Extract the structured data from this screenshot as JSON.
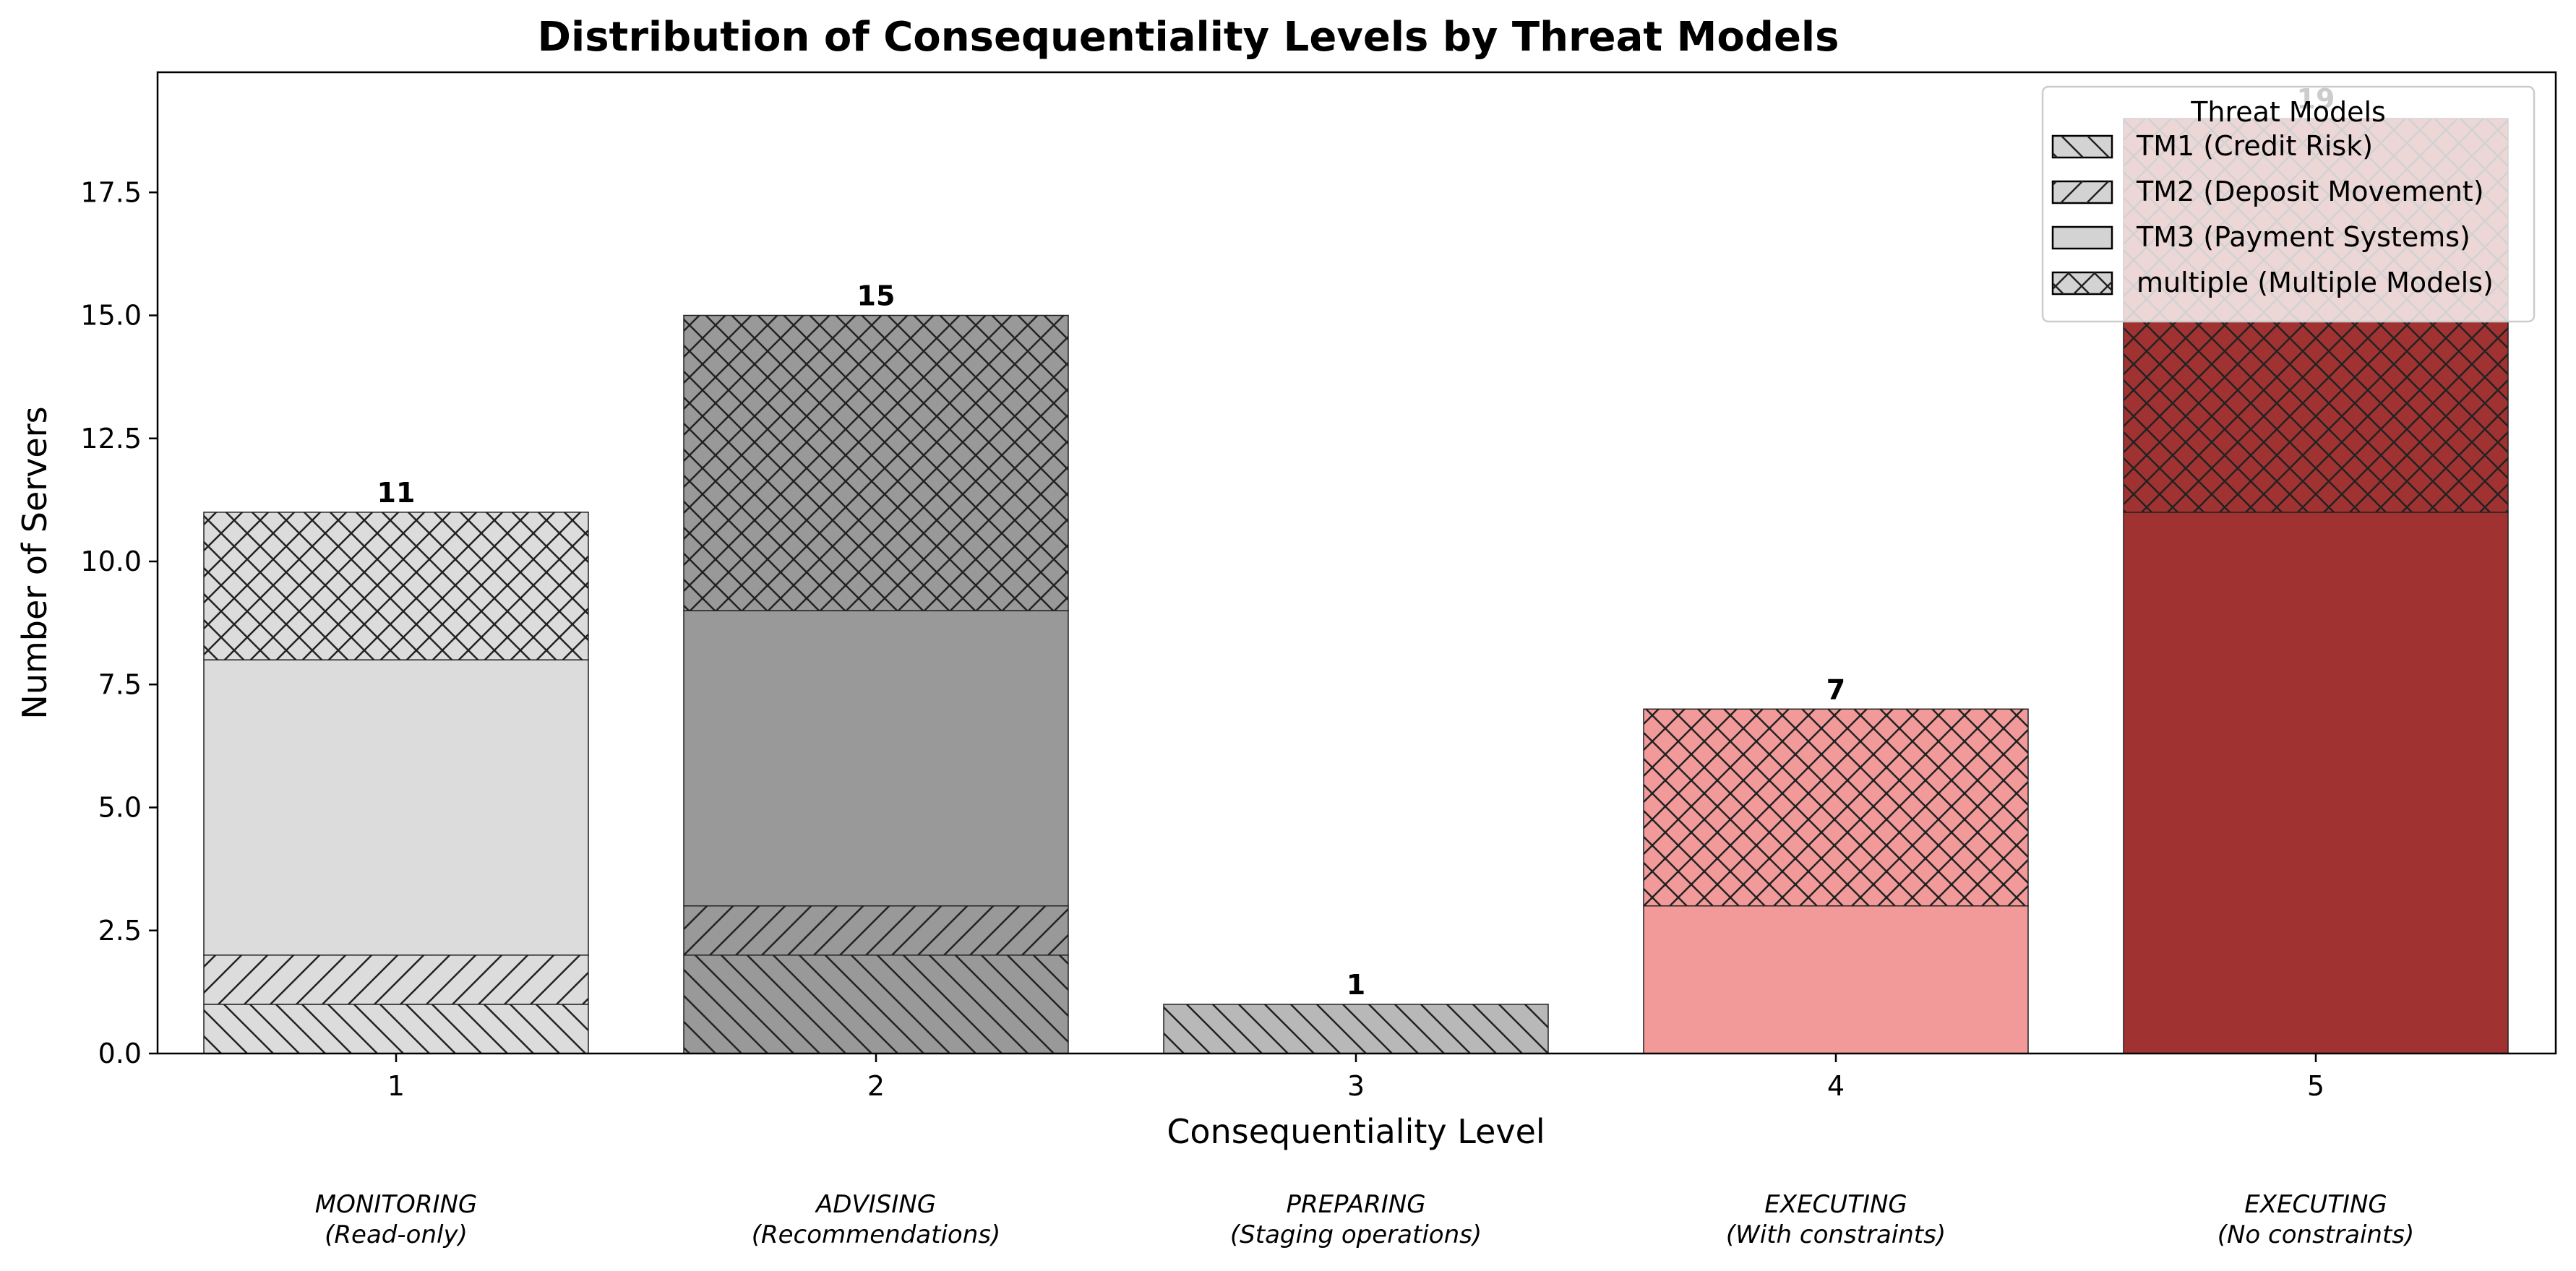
{
  "chart_data": {
    "type": "bar",
    "stacked": true,
    "title": "Distribution of Consequentiality Levels by Threat Models",
    "xlabel": "Consequentiality Level",
    "ylabel": "Number of Servers",
    "ylim": [
      0,
      20
    ],
    "y_ticks": [
      "0.0",
      "2.5",
      "5.0",
      "7.5",
      "10.0",
      "12.5",
      "15.0",
      "17.5"
    ],
    "categories": [
      "1",
      "2",
      "3",
      "4",
      "5"
    ],
    "category_descriptions": [
      [
        "MONITORING",
        "(Read-only)"
      ],
      [
        "ADVISING",
        "(Recommendations)"
      ],
      [
        "PREPARING",
        "(Staging operations)"
      ],
      [
        "EXECUTING",
        "(With constraints)"
      ],
      [
        "EXECUTING",
        "(No constraints)"
      ]
    ],
    "bar_colors": [
      "#dcdcdc",
      "#999999",
      "#b8b8b8",
      "#f29a9a",
      "#a03232"
    ],
    "series": [
      {
        "name": "TM1 (Credit Risk)",
        "hatch": "backslash",
        "values": [
          1,
          2,
          1,
          0,
          0
        ]
      },
      {
        "name": "TM2 (Deposit Movement)",
        "hatch": "slash",
        "values": [
          1,
          1,
          0,
          0,
          0
        ]
      },
      {
        "name": "TM3 (Payment Systems)",
        "hatch": "none",
        "values": [
          6,
          6,
          0,
          3,
          11
        ]
      },
      {
        "name": "multiple (Multiple Models)",
        "hatch": "cross",
        "values": [
          3,
          6,
          0,
          4,
          8
        ]
      }
    ],
    "totals": [
      11,
      15,
      1,
      7,
      19
    ],
    "legend": {
      "title": "Threat Models",
      "placement": "top-right"
    },
    "grid": false
  }
}
